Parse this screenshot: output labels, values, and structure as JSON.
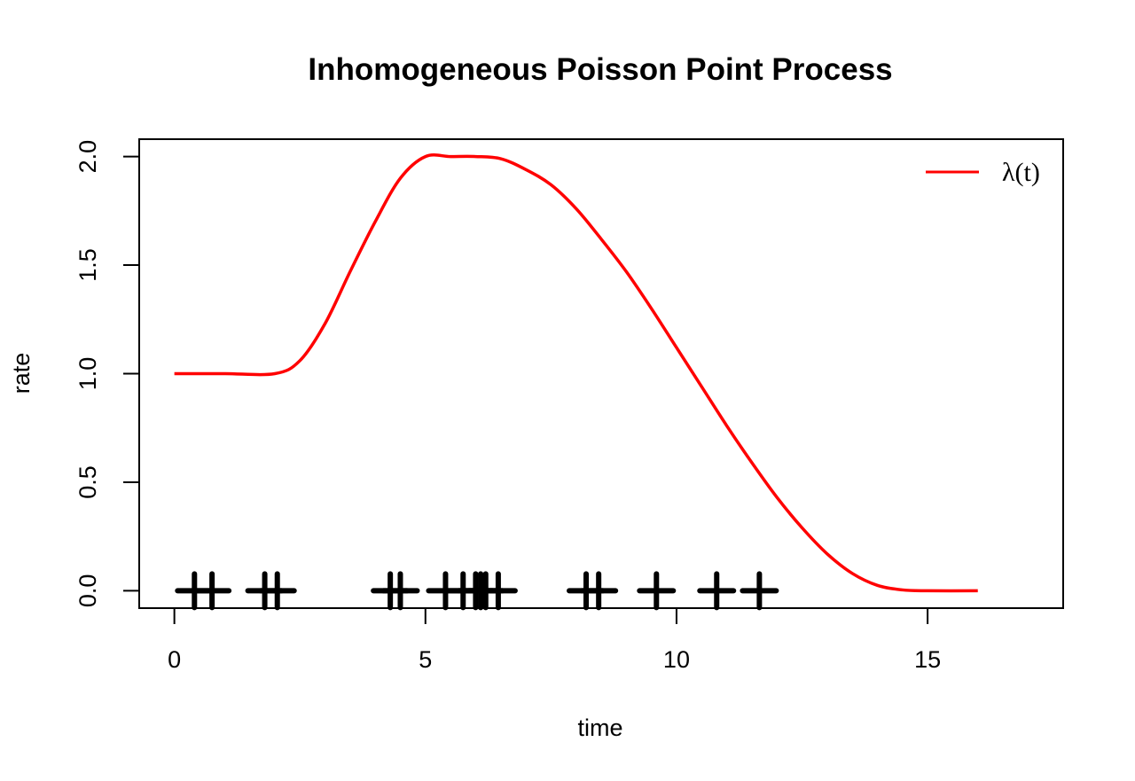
{
  "chart_data": {
    "type": "line",
    "title": "Inhomogeneous Poisson Point Process",
    "xlabel": "time",
    "ylabel": "rate",
    "xlim": [
      -0.7,
      17.7
    ],
    "ylim": [
      -0.08,
      2.08
    ],
    "x_ticks": [
      "0",
      "5",
      "10",
      "15"
    ],
    "y_ticks": [
      "0.0",
      "0.5",
      "1.0",
      "1.5",
      "2.0"
    ],
    "grid": false,
    "legend": {
      "position": "top-right",
      "entries": [
        "λ(t)"
      ]
    },
    "series": [
      {
        "name": "λ(t)",
        "color": "#ff0000",
        "x": [
          0,
          1,
          2,
          2.5,
          3,
          3.5,
          4,
          4.5,
          5,
          5.5,
          6,
          6.5,
          7,
          7.5,
          8,
          8.5,
          9,
          9.5,
          10,
          10.5,
          11,
          11.5,
          12,
          12.5,
          13,
          13.5,
          14,
          14.5,
          15,
          16
        ],
        "y": [
          1.0,
          1.0,
          1.0,
          1.06,
          1.23,
          1.47,
          1.7,
          1.9,
          2.0,
          2.0,
          2.0,
          1.99,
          1.94,
          1.87,
          1.76,
          1.62,
          1.47,
          1.3,
          1.12,
          0.94,
          0.76,
          0.59,
          0.43,
          0.29,
          0.17,
          0.08,
          0.025,
          0.004,
          0.0,
          0.0
        ]
      }
    ],
    "events": {
      "marker": "+",
      "color": "#000000",
      "y": 0,
      "x": [
        0.4,
        0.75,
        1.8,
        2.05,
        4.3,
        4.5,
        5.4,
        5.75,
        6.0,
        6.1,
        6.2,
        6.45,
        8.2,
        8.45,
        9.6,
        10.8,
        11.65
      ]
    }
  }
}
